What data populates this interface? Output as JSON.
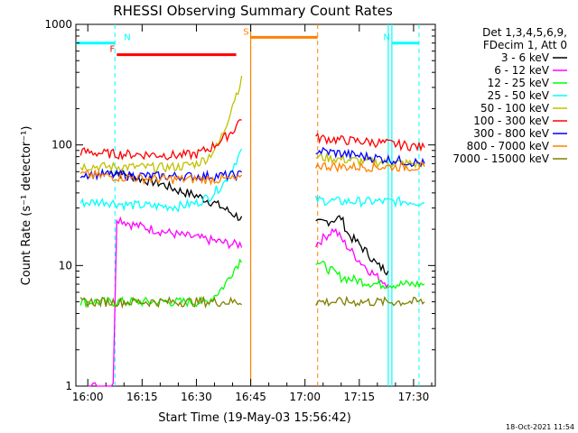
{
  "chart_data": {
    "type": "line",
    "title": "RHESSI Observing Summary Count Rates",
    "xlabel": "Start Time (19-May-03 15:56:42)",
    "ylabel": "Count Rate (s⁻¹ detector⁻¹)",
    "y_scale": "log",
    "ylim": [
      1,
      1000
    ],
    "xlim": [
      "15:56:42",
      "17:36:00"
    ],
    "x_ticks": [
      "16:00",
      "16:15",
      "16:30",
      "16:45",
      "17:00",
      "17:15",
      "17:30"
    ],
    "y_ticks": [
      "1",
      "10",
      "100",
      "1000"
    ],
    "legend_header": [
      "Det 1,3,4,5,6,9,",
      "FDecim 1, Att 0"
    ],
    "legend_position": "top-right",
    "series": [
      {
        "name": "3 - 6 keV",
        "color": "#000000",
        "x": [
          "16:06",
          "16:10",
          "16:15",
          "16:20",
          "16:25",
          "16:30",
          "16:35",
          "16:40",
          "16:43",
          "17:03",
          "17:10",
          "17:12",
          "17:15",
          "17:18",
          "17:20",
          "17:23"
        ],
        "y": [
          60,
          58,
          52,
          48,
          42,
          38,
          33,
          27,
          24,
          22,
          25,
          18,
          15,
          12,
          10,
          9
        ]
      },
      {
        "name": "6 - 12 keV",
        "color": "#ff00ff",
        "x": [
          "16:00",
          "16:05",
          "16:07",
          "16:08",
          "16:12",
          "16:18",
          "16:25",
          "16:30",
          "16:35",
          "16:40",
          "16:43",
          "17:03",
          "17:08",
          "17:12",
          "17:15",
          "17:18",
          "17:20",
          "17:23"
        ],
        "y": [
          1,
          1,
          1,
          25,
          22,
          20,
          18,
          17,
          16,
          15,
          15,
          15,
          20,
          14,
          11,
          9,
          8,
          7
        ]
      },
      {
        "name": "12 - 25 keV",
        "color": "#00ff00",
        "x": [
          "15:58",
          "16:10",
          "16:20",
          "16:30",
          "16:33",
          "16:36",
          "16:38",
          "16:40",
          "16:43",
          "17:03",
          "17:10",
          "17:20",
          "17:30",
          "17:33"
        ],
        "y": [
          5,
          5,
          5,
          5,
          5,
          6,
          7,
          9,
          12,
          11,
          8,
          7,
          7,
          7
        ]
      },
      {
        "name": "25 - 50 keV",
        "color": "#00ffff",
        "x": [
          "15:58",
          "16:05",
          "16:10",
          "16:20",
          "16:25",
          "16:30",
          "16:34",
          "16:38",
          "16:41",
          "16:43",
          "17:03",
          "17:10",
          "17:20",
          "17:30",
          "17:33"
        ],
        "y": [
          33,
          34,
          32,
          31,
          31,
          33,
          38,
          50,
          75,
          95,
          35,
          34,
          34,
          34,
          33
        ]
      },
      {
        "name": "50 - 100 keV",
        "color": "#c0c000",
        "x": [
          "15:58",
          "16:05",
          "16:10",
          "16:20",
          "16:25",
          "16:30",
          "16:33",
          "16:36",
          "16:38",
          "16:40",
          "16:43",
          "17:03",
          "17:10",
          "17:20",
          "17:30",
          "17:33"
        ],
        "y": [
          67,
          66,
          66,
          65,
          66,
          70,
          78,
          100,
          140,
          220,
          380,
          80,
          76,
          72,
          70,
          68
        ]
      },
      {
        "name": "100 - 300 keV",
        "color": "#ff0000",
        "x": [
          "15:58",
          "16:05",
          "16:10",
          "16:20",
          "16:25",
          "16:30",
          "16:34",
          "16:37",
          "16:40",
          "16:43",
          "17:03",
          "17:10",
          "17:20",
          "17:30",
          "17:33"
        ],
        "y": [
          88,
          85,
          84,
          83,
          82,
          84,
          95,
          110,
          130,
          180,
          115,
          110,
          105,
          98,
          95
        ]
      },
      {
        "name": "300 - 800 keV",
        "color": "#0000ff",
        "x": [
          "15:58",
          "16:10",
          "16:20",
          "16:30",
          "16:40",
          "16:43",
          "17:03",
          "17:10",
          "17:20",
          "17:30",
          "17:33"
        ],
        "y": [
          58,
          56,
          55,
          55,
          56,
          57,
          90,
          85,
          78,
          72,
          70
        ]
      },
      {
        "name": "800 - 7000 keV",
        "color": "#ff8000",
        "x": [
          "15:58",
          "16:10",
          "16:20",
          "16:30",
          "16:40",
          "16:43",
          "17:03",
          "17:10",
          "17:20",
          "17:30",
          "17:33"
        ],
        "y": [
          57,
          54,
          52,
          52,
          52,
          52,
          68,
          66,
          66,
          66,
          66
        ]
      },
      {
        "name": "7000 - 15000 keV",
        "color": "#808000",
        "x": [
          "15:58",
          "16:10",
          "16:20",
          "16:30",
          "16:40",
          "16:43",
          "17:03",
          "17:10",
          "17:20",
          "17:30",
          "17:33"
        ],
        "y": [
          5,
          5,
          5,
          5,
          5,
          5,
          5,
          5,
          5,
          5,
          5
        ]
      }
    ],
    "flags": [
      {
        "label": "N",
        "color": "#00ffff",
        "x_start": "15:56:42",
        "x_end": "16:07:30",
        "y": 700,
        "line_at": "16:07:30"
      },
      {
        "label": "N",
        "color": "#00ffff",
        "x_start": "17:24:00",
        "x_end": "17:31:30",
        "y": 700,
        "line_at": "17:31:30"
      },
      {
        "label": "F",
        "color": "#ff0000",
        "x_start": "16:08:00",
        "x_end": "16:41:00",
        "y": 560
      },
      {
        "label": "S",
        "color": "#ff8000",
        "x_start": "16:45:00",
        "x_end": "17:03:30",
        "y": 780,
        "line_at": "17:03:30"
      }
    ],
    "markers": [
      {
        "color": "#ff8000",
        "x": "16:45:00",
        "style": "solid"
      },
      {
        "color": "#00ffff",
        "x": "17:24:00",
        "style": "solid"
      },
      {
        "color": "#00ffff",
        "x": "17:23:00",
        "style": "solid"
      }
    ],
    "timestamp": "18-Oct-2021 11:54"
  }
}
